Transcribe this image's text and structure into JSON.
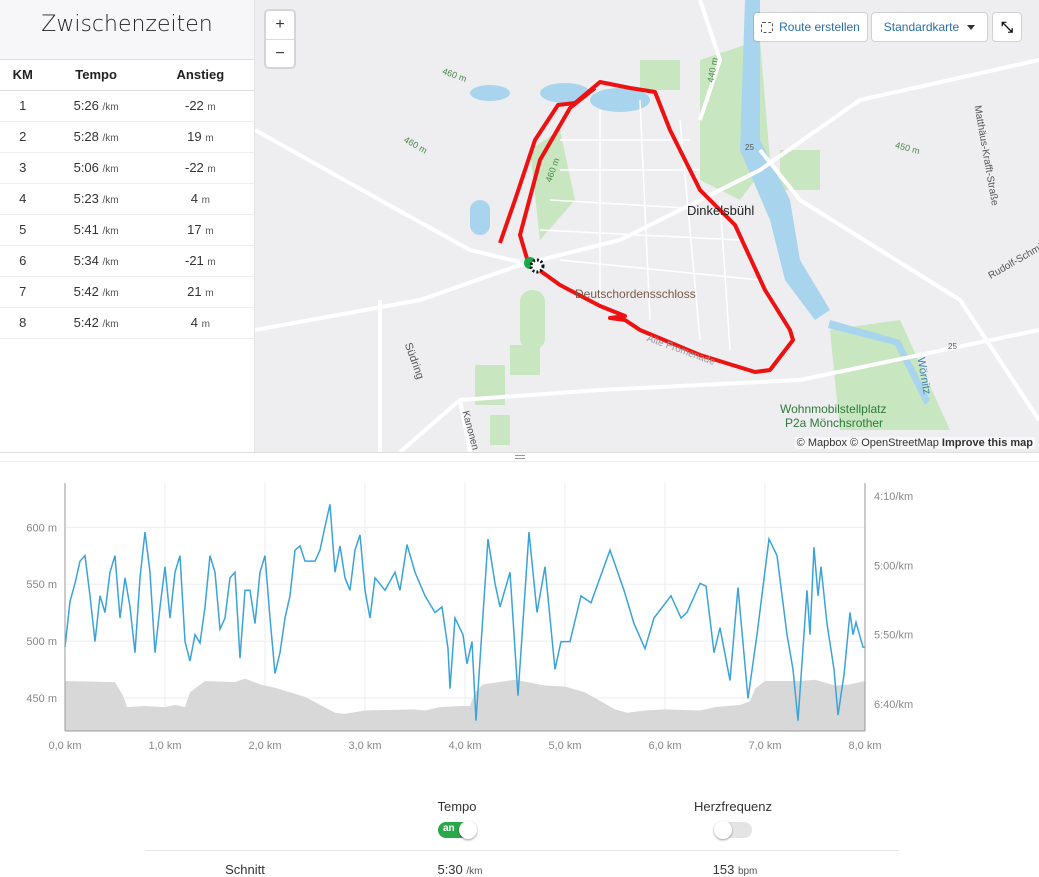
{
  "splits": {
    "title": "Zwischenzeiten",
    "headers": [
      "KM",
      "Tempo",
      "Anstieg"
    ],
    "pace_unit": "/km",
    "climb_unit": "m",
    "rows": [
      {
        "km": "1",
        "pace": "5:26",
        "climb": "-22"
      },
      {
        "km": "2",
        "pace": "5:28",
        "climb": "19"
      },
      {
        "km": "3",
        "pace": "5:06",
        "climb": "-22"
      },
      {
        "km": "4",
        "pace": "5:23",
        "climb": "4"
      },
      {
        "km": "5",
        "pace": "5:41",
        "climb": "17"
      },
      {
        "km": "6",
        "pace": "5:34",
        "climb": "-21"
      },
      {
        "km": "7",
        "pace": "5:42",
        "climb": "21"
      },
      {
        "km": "8",
        "pace": "5:42",
        "climb": "4"
      }
    ]
  },
  "map": {
    "zoom_in": "+",
    "zoom_out": "−",
    "route_button": "Route erstellen",
    "route_icon": "route-dotted-icon",
    "style_select": "Standardkarte",
    "fullscreen_icon": "fullscreen-icon",
    "attribution": {
      "mapbox": "© Mapbox",
      "osm": "© OpenStreetMap",
      "improve": "Improve this map"
    },
    "labels": {
      "town": "Dinkelsbühl",
      "castle": "Deutschordensschloss",
      "camp1": "Wohnmobilstellplatz",
      "camp2": "P2a Mönchsrother",
      "street1": "Südring",
      "street2": "Matthäus-Krafft-Straße",
      "street3": "Rudolf-Schmid",
      "street4": "Alte Promenade",
      "street5": "Kanonen",
      "river": "Wörnitz",
      "c1": "460 m",
      "c2": "460 m",
      "c3": "460 m",
      "c4": "440 m",
      "c5": "450 m",
      "road": "25",
      "road2": "25"
    },
    "colors": {
      "route": "#ee1111",
      "water": "#a8d4ee",
      "park": "#c8e6c0"
    }
  },
  "chart_data": {
    "type": "line",
    "colors": {
      "pace": "#3aa3d8",
      "elevation": "#d8d8d8"
    },
    "x_ticks": [
      "0,0 km",
      "1,0 km",
      "2,0 km",
      "3,0 km",
      "4,0 km",
      "5,0 km",
      "6,0 km",
      "7,0 km",
      "8,0 km"
    ],
    "left_ticks": [
      "600 m",
      "550 m",
      "500 m",
      "450 m"
    ],
    "right_ticks": [
      "4:10/km",
      "5:00/km",
      "5:50/km",
      "6:40/km"
    ],
    "xlim": [
      0,
      8
    ],
    "elevation_ylim": [
      421,
      639
    ],
    "pace_ylim": [
      "4:00",
      "7:00"
    ],
    "grid": true,
    "elevation": [
      [
        0,
        465
      ],
      [
        0.5,
        464
      ],
      [
        0.58,
        452
      ],
      [
        0.62,
        442
      ],
      [
        0.8,
        443
      ],
      [
        1.0,
        442
      ],
      [
        1.1,
        444
      ],
      [
        1.2,
        442
      ],
      [
        1.25,
        455
      ],
      [
        1.4,
        465
      ],
      [
        1.7,
        464
      ],
      [
        1.8,
        467
      ],
      [
        1.95,
        462
      ],
      [
        2.1,
        459
      ],
      [
        2.4,
        451
      ],
      [
        2.7,
        437
      ],
      [
        2.8,
        436
      ],
      [
        3.0,
        439
      ],
      [
        3.5,
        440
      ],
      [
        3.6,
        439
      ],
      [
        3.75,
        442
      ],
      [
        3.95,
        443
      ],
      [
        4.05,
        443
      ],
      [
        4.1,
        455
      ],
      [
        4.18,
        462
      ],
      [
        4.5,
        466
      ],
      [
        4.8,
        461
      ],
      [
        5.0,
        460
      ],
      [
        5.2,
        455
      ],
      [
        5.5,
        440
      ],
      [
        5.62,
        437
      ],
      [
        5.8,
        439
      ],
      [
        6.0,
        440
      ],
      [
        6.35,
        439
      ],
      [
        6.5,
        442
      ],
      [
        6.75,
        444
      ],
      [
        6.85,
        447
      ],
      [
        6.9,
        458
      ],
      [
        7.0,
        465
      ],
      [
        7.35,
        465
      ],
      [
        7.5,
        466
      ],
      [
        7.7,
        461
      ],
      [
        7.85,
        462
      ],
      [
        8.0,
        465
      ]
    ],
    "pace": [
      [
        0,
        "5:59"
      ],
      [
        0.05,
        "5:26"
      ],
      [
        0.1,
        "5:13"
      ],
      [
        0.15,
        "4:57"
      ],
      [
        0.2,
        "4:53"
      ],
      [
        0.25,
        "5:22"
      ],
      [
        0.3,
        "5:55"
      ],
      [
        0.35,
        "5:22"
      ],
      [
        0.4,
        "5:34"
      ],
      [
        0.45,
        "5:05"
      ],
      [
        0.5,
        "4:53"
      ],
      [
        0.55,
        "5:38"
      ],
      [
        0.6,
        "5:09"
      ],
      [
        0.65,
        "5:30"
      ],
      [
        0.7,
        "6:03"
      ],
      [
        0.75,
        "5:09"
      ],
      [
        0.8,
        "4:36"
      ],
      [
        0.85,
        "5:05"
      ],
      [
        0.9,
        "6:03"
      ],
      [
        0.95,
        "5:30"
      ],
      [
        1.0,
        "5:01"
      ],
      [
        1.05,
        "5:38"
      ],
      [
        1.1,
        "5:05"
      ],
      [
        1.15,
        "4:53"
      ],
      [
        1.2,
        "5:55"
      ],
      [
        1.25,
        "6:09"
      ],
      [
        1.3,
        "5:50"
      ],
      [
        1.35,
        "5:56"
      ],
      [
        1.4,
        "5:30"
      ],
      [
        1.45,
        "4:53"
      ],
      [
        1.5,
        "5:05"
      ],
      [
        1.55,
        "5:46"
      ],
      [
        1.6,
        "5:38"
      ],
      [
        1.65,
        "5:09"
      ],
      [
        1.7,
        "5:05"
      ],
      [
        1.75,
        "6:07"
      ],
      [
        1.8,
        "5:18"
      ],
      [
        1.85,
        "5:18"
      ],
      [
        1.9,
        "5:42"
      ],
      [
        1.95,
        "5:05"
      ],
      [
        2.0,
        "4:53"
      ],
      [
        2.05,
        "5:38"
      ],
      [
        2.1,
        "6:18"
      ],
      [
        2.15,
        "6:03"
      ],
      [
        2.2,
        "5:38"
      ],
      [
        2.25,
        "5:22"
      ],
      [
        2.3,
        "4:49"
      ],
      [
        2.35,
        "4:46"
      ],
      [
        2.4,
        "4:57"
      ],
      [
        2.5,
        "4:57"
      ],
      [
        2.55,
        "4:49"
      ],
      [
        2.6,
        "4:32"
      ],
      [
        2.65,
        "4:16"
      ],
      [
        2.7,
        "5:05"
      ],
      [
        2.75,
        "4:46"
      ],
      [
        2.8,
        "5:09"
      ],
      [
        2.85,
        "5:18"
      ],
      [
        2.9,
        "4:49"
      ],
      [
        2.95,
        "4:38"
      ],
      [
        3.0,
        "5:18"
      ],
      [
        3.05,
        "5:38"
      ],
      [
        3.1,
        "5:09"
      ],
      [
        3.2,
        "5:18"
      ],
      [
        3.3,
        "5:05"
      ],
      [
        3.35,
        "5:18"
      ],
      [
        3.42,
        "4:45"
      ],
      [
        3.5,
        "5:05"
      ],
      [
        3.6,
        "5:22"
      ],
      [
        3.7,
        "5:34"
      ],
      [
        3.77,
        "5:30"
      ],
      [
        3.83,
        "6:00"
      ],
      [
        3.85,
        "6:29"
      ],
      [
        3.9,
        "5:38"
      ],
      [
        3.98,
        "5:50"
      ],
      [
        4.02,
        "6:11"
      ],
      [
        4.07,
        "5:55"
      ],
      [
        4.11,
        "6:52"
      ],
      [
        4.23,
        "4:41"
      ],
      [
        4.3,
        "5:13"
      ],
      [
        4.35,
        "5:30"
      ],
      [
        4.45,
        "5:05"
      ],
      [
        4.53,
        "6:34"
      ],
      [
        4.64,
        "4:36"
      ],
      [
        4.72,
        "5:34"
      ],
      [
        4.8,
        "5:01"
      ],
      [
        4.9,
        "6:15"
      ],
      [
        4.96,
        "5:55"
      ],
      [
        5.05,
        "5:55"
      ],
      [
        5.16,
        "5:22"
      ],
      [
        5.26,
        "5:27"
      ],
      [
        5.45,
        "4:49"
      ],
      [
        5.59,
        "5:18"
      ],
      [
        5.69,
        "5:42"
      ],
      [
        5.8,
        "6:00"
      ],
      [
        5.89,
        "5:38"
      ],
      [
        6.06,
        "5:22"
      ],
      [
        6.16,
        "5:38"
      ],
      [
        6.22,
        "5:34"
      ],
      [
        6.35,
        "5:13"
      ],
      [
        6.41,
        "5:15"
      ],
      [
        6.49,
        "6:03"
      ],
      [
        6.55,
        "5:45"
      ],
      [
        6.65,
        "6:23"
      ],
      [
        6.73,
        "5:16"
      ],
      [
        6.83,
        "6:36"
      ],
      [
        6.92,
        "5:50"
      ],
      [
        7.04,
        "4:41"
      ],
      [
        7.12,
        "4:53"
      ],
      [
        7.22,
        "5:50"
      ],
      [
        7.28,
        "6:15"
      ],
      [
        7.33,
        "6:52"
      ],
      [
        7.42,
        "5:18"
      ],
      [
        7.45,
        "5:50"
      ],
      [
        7.49,
        "4:47"
      ],
      [
        7.53,
        "5:22"
      ],
      [
        7.56,
        "5:01"
      ],
      [
        7.62,
        "5:42"
      ],
      [
        7.69,
        "6:15"
      ],
      [
        7.73,
        "6:48"
      ],
      [
        7.79,
        "6:19"
      ],
      [
        7.85,
        "5:34"
      ],
      [
        7.88,
        "5:50"
      ],
      [
        7.91,
        "5:41"
      ],
      [
        7.98,
        "5:59"
      ],
      [
        8.0,
        "5:59"
      ]
    ]
  },
  "controls": {
    "tempo_label": "Tempo",
    "tempo_on": true,
    "tempo_toggle_text": "an",
    "hr_label": "Herzfrequenz",
    "hr_on": false
  },
  "summary": {
    "label": "Schnitt",
    "pace": "5:30",
    "pace_unit": "/km",
    "hr": "153",
    "hr_unit": "bpm"
  }
}
